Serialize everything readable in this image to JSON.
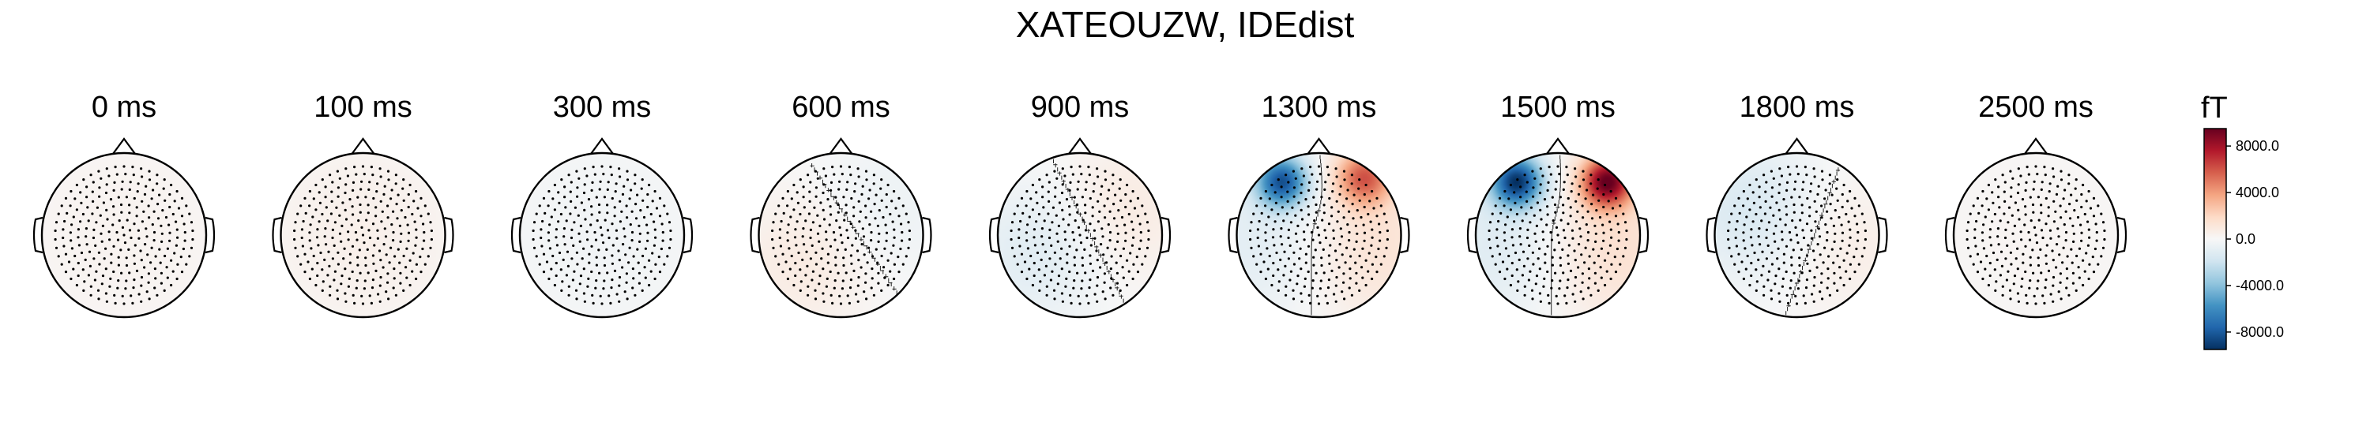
{
  "title": "XATEOUZW, IDEdist",
  "chart_data": {
    "type": "heatmap",
    "title": "XATEOUZW, IDEdist",
    "unit": "fT",
    "panels": [
      {
        "label": "0 ms",
        "time_ms": 0,
        "blobs": [
          {
            "cx": 0.0,
            "cy": 0.0,
            "sigma": 0.9,
            "value": 300
          }
        ]
      },
      {
        "label": "100 ms",
        "time_ms": 100,
        "blobs": [
          {
            "cx": 0.0,
            "cy": 0.0,
            "sigma": 0.9,
            "value": 500
          }
        ]
      },
      {
        "label": "300 ms",
        "time_ms": 300,
        "blobs": [
          {
            "cx": 0.0,
            "cy": 0.0,
            "sigma": 0.9,
            "value": -300
          }
        ]
      },
      {
        "label": "600 ms",
        "time_ms": 600,
        "blobs": [
          {
            "cx": -0.4,
            "cy": 0.3,
            "sigma": 0.6,
            "value": 900
          },
          {
            "cx": 0.5,
            "cy": -0.3,
            "sigma": 0.6,
            "value": -600
          }
        ]
      },
      {
        "label": "900 ms",
        "time_ms": 900,
        "blobs": [
          {
            "cx": -0.5,
            "cy": 0.2,
            "sigma": 0.6,
            "value": -1200
          },
          {
            "cx": 0.5,
            "cy": -0.3,
            "sigma": 0.6,
            "value": 900
          }
        ]
      },
      {
        "label": "1300 ms",
        "time_ms": 1300,
        "blobs": [
          {
            "cx": -0.45,
            "cy": -0.65,
            "sigma": 0.22,
            "value": -8000
          },
          {
            "cx": 0.55,
            "cy": -0.7,
            "sigma": 0.24,
            "value": 5500
          },
          {
            "cx": -0.6,
            "cy": 0.1,
            "sigma": 0.7,
            "value": -1200
          },
          {
            "cx": 0.6,
            "cy": 0.1,
            "sigma": 0.7,
            "value": 1500
          }
        ]
      },
      {
        "label": "1500 ms",
        "time_ms": 1500,
        "blobs": [
          {
            "cx": -0.5,
            "cy": -0.65,
            "sigma": 0.22,
            "value": -9000
          },
          {
            "cx": 0.6,
            "cy": -0.65,
            "sigma": 0.22,
            "value": 9000
          },
          {
            "cx": -0.6,
            "cy": 0.1,
            "sigma": 0.7,
            "value": -1400
          },
          {
            "cx": 0.6,
            "cy": 0.1,
            "sigma": 0.7,
            "value": 1700
          }
        ]
      },
      {
        "label": "1800 ms",
        "time_ms": 1800,
        "blobs": [
          {
            "cx": -0.55,
            "cy": -0.3,
            "sigma": 0.6,
            "value": -1500
          },
          {
            "cx": 0.55,
            "cy": 0.1,
            "sigma": 0.6,
            "value": 700
          }
        ]
      },
      {
        "label": "2500 ms",
        "time_ms": 2500,
        "blobs": [
          {
            "cx": 0.0,
            "cy": 0.0,
            "sigma": 0.9,
            "value": 200
          }
        ]
      }
    ],
    "colorbar": {
      "label": "fT",
      "range": [
        -9500,
        9500
      ],
      "ticks": [
        8000,
        4000,
        0,
        -4000,
        -8000
      ],
      "tick_labels": [
        "8000.0",
        "4000.0",
        "0.0",
        "-4000.0",
        "-8000.0"
      ],
      "colormap": "RdBu_r"
    },
    "colors": {
      "negative_extreme": "#053061",
      "negative": "#2166ac",
      "negative_light": "#92c5de",
      "neutral": "#f7f7f7",
      "positive_light": "#f4a582",
      "positive": "#b2182b",
      "positive_extreme": "#67001f"
    }
  }
}
